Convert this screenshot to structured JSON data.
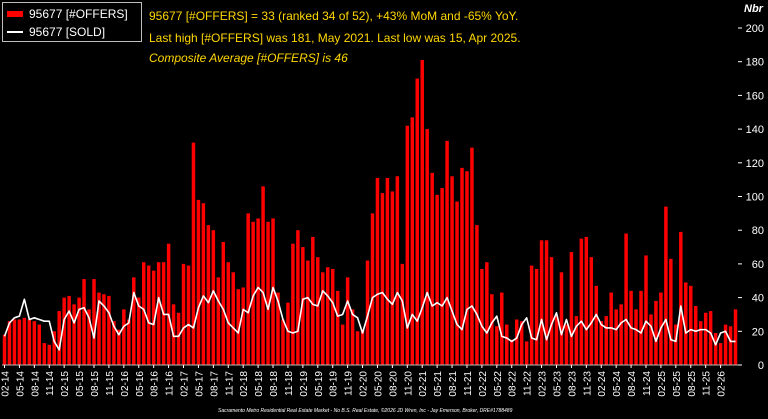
{
  "colors": {
    "background": "#000000",
    "bars": "#ff0000",
    "line": "#ffffff",
    "info_text": "#ffd700"
  },
  "legend": {
    "offers_label": "95677 [#OFFERS]",
    "sold_label": "95677 [SOLD]"
  },
  "info": {
    "line1": "95677 [#OFFERS] = 33 (ranked 34 of 52), +43% MoM and -65% YoY.",
    "line2": "Last high [#OFFERS] was 181, May 2021. Last low was 15, Apr 2025.",
    "line3": "Composite Average [#OFFERS] is 46"
  },
  "footer": "Sacramento Metro Residential Real Estate Market - No B.S. Real Estate, ©2026 JD Wren, Inc - Jay Emerson, Broker, DRE#1788489",
  "chart_data": {
    "type": "bar",
    "title": "",
    "xlabel": "",
    "ylabel": "Nbr",
    "ylim": [
      0,
      200
    ],
    "yticks": [
      0,
      20,
      40,
      60,
      80,
      100,
      120,
      140,
      160,
      180,
      200
    ],
    "y_axis_side": "right",
    "grid": false,
    "legend_position": "top-left",
    "x_start": "2014-02",
    "x_tick_labels": [
      "02-14",
      "05-14",
      "08-14",
      "11-14",
      "02-15",
      "05-15",
      "08-15",
      "11-15",
      "02-16",
      "05-16",
      "08-16",
      "11-16",
      "02-17",
      "05-17",
      "08-17",
      "11-17",
      "02-18",
      "05-18",
      "08-18",
      "11-18",
      "02-19",
      "05-19",
      "08-19",
      "11-19",
      "02-20",
      "05-20",
      "08-20",
      "11-20",
      "02-21",
      "05-21",
      "08-21",
      "11-21",
      "02-22",
      "05-22",
      "08-22",
      "11-22",
      "02-23",
      "05-23",
      "08-23",
      "11-23",
      "02-24",
      "05-24",
      "08-24",
      "11-24",
      "02-25",
      "05-25",
      "08-25",
      "11-25",
      "02-26"
    ],
    "series": [
      {
        "name": "95677 [#OFFERS]",
        "type": "bar",
        "values": [
          18,
          26,
          27,
          27,
          28,
          27,
          26,
          24,
          13,
          12,
          20,
          32,
          40,
          41,
          36,
          40,
          51,
          33,
          51,
          43,
          42,
          41,
          26,
          21,
          33,
          27,
          52,
          40,
          61,
          59,
          56,
          61,
          61,
          72,
          36,
          31,
          60,
          59,
          132,
          98,
          96,
          83,
          80,
          52,
          73,
          61,
          55,
          45,
          46,
          90,
          85,
          87,
          106,
          85,
          87,
          43,
          27,
          37,
          72,
          80,
          70,
          62,
          76,
          64,
          55,
          58,
          57,
          44,
          24,
          52,
          33,
          20,
          21,
          62,
          90,
          111,
          102,
          111,
          103,
          112,
          60,
          142,
          147,
          170,
          181,
          140,
          114,
          101,
          105,
          133,
          112,
          97,
          117,
          115,
          129,
          83,
          57,
          61,
          42,
          23,
          43,
          24,
          15,
          27,
          26,
          14,
          59,
          57,
          74,
          74,
          64,
          29,
          55,
          24,
          67,
          29,
          75,
          76,
          64,
          47,
          26,
          29,
          43,
          33,
          36,
          78,
          44,
          33,
          44,
          65,
          30,
          38,
          43,
          94,
          63,
          24,
          79,
          49,
          47,
          35,
          26,
          31,
          32,
          19,
          13,
          24,
          23,
          33
        ]
      },
      {
        "name": "95677 [SOLD]",
        "type": "line",
        "values": [
          17,
          25,
          28,
          29,
          39,
          27,
          28,
          27,
          26,
          26,
          14,
          9,
          27,
          32,
          25,
          33,
          34,
          28,
          16,
          38,
          35,
          31,
          23,
          18,
          23,
          25,
          43,
          35,
          33,
          25,
          24,
          40,
          30,
          30,
          17,
          17,
          22,
          24,
          22,
          34,
          41,
          37,
          44,
          38,
          33,
          25,
          22,
          19,
          33,
          31,
          41,
          46,
          43,
          33,
          46,
          38,
          27,
          20,
          19,
          20,
          39,
          40,
          36,
          35,
          44,
          41,
          37,
          29,
          30,
          38,
          30,
          28,
          19,
          29,
          40,
          42,
          43,
          39,
          36,
          43,
          38,
          22,
          30,
          26,
          34,
          43,
          35,
          37,
          35,
          40,
          32,
          24,
          21,
          33,
          35,
          30,
          23,
          19,
          25,
          29,
          17,
          16,
          14,
          16,
          24,
          28,
          16,
          15,
          27,
          15,
          24,
          31,
          18,
          27,
          17,
          23,
          26,
          21,
          25,
          30,
          24,
          22,
          22,
          21,
          25,
          27,
          22,
          21,
          19,
          26,
          23,
          14,
          22,
          27,
          15,
          14,
          35,
          19,
          21,
          20,
          21,
          21,
          19,
          12,
          19,
          20,
          14,
          14
        ]
      }
    ]
  }
}
